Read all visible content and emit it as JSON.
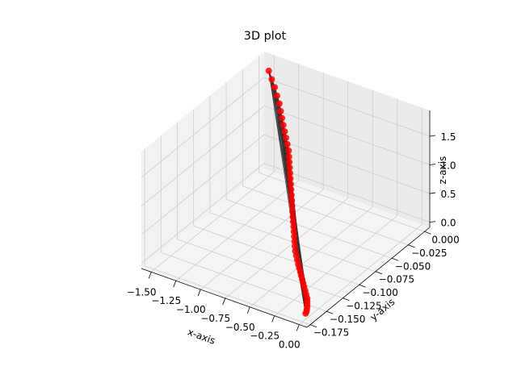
{
  "chart_data": {
    "type": "scatter",
    "title": "3D plot",
    "xlabel": "x-axis",
    "ylabel": "y-axis",
    "zlabel": "z-axis",
    "xlim": [
      -1.6,
      0.08
    ],
    "ylim": [
      -0.18,
      0.008
    ],
    "zlim": [
      -0.09,
      1.95
    ],
    "x_ticks": [
      "−1.50",
      "−1.25",
      "−1.00",
      "−0.75",
      "−0.50",
      "−0.25",
      "0.00"
    ],
    "x_tick_values": [
      -1.5,
      -1.25,
      -1.0,
      -0.75,
      -0.5,
      -0.25,
      0.0
    ],
    "y_ticks": [
      "−0.175",
      "−0.150",
      "−0.125",
      "−0.100",
      "−0.075",
      "−0.050",
      "−0.025",
      "0.000"
    ],
    "y_tick_values": [
      -0.175,
      -0.15,
      -0.125,
      -0.1,
      -0.075,
      -0.05,
      -0.025,
      0.0
    ],
    "z_ticks": [
      "0.0",
      "0.5",
      "1.0",
      "1.5"
    ],
    "z_tick_values": [
      0.0,
      0.5,
      1.0,
      1.5
    ],
    "grid": true,
    "colors": {
      "points": "#ff0000",
      "lines": "#333333",
      "pane_back": "#ebebeb",
      "pane_side": "#f2f2f2",
      "pane_floor": "#f5f5f5",
      "grid": "#cccccc"
    },
    "series": [
      {
        "x": [
          -1.5,
          -1.45,
          -1.4,
          -1.35,
          -1.3,
          -1.26,
          -1.22,
          -1.18,
          -1.14,
          -1.1,
          -1.06,
          -1.02,
          -0.99,
          -0.96,
          -0.93,
          -0.9,
          -0.87,
          -0.84,
          -0.81,
          -0.78,
          -0.75,
          -0.72,
          -0.69,
          -0.66,
          -0.63,
          -0.6,
          -0.57,
          -0.54,
          -0.51,
          -0.48,
          -0.45,
          -0.42,
          -0.39,
          -0.36,
          -0.33,
          -0.3,
          -0.27,
          -0.24,
          -0.21,
          -0.18,
          -0.15,
          -0.12,
          -0.09,
          -0.07,
          -0.05,
          -0.03,
          -0.015,
          -0.005,
          0.0
        ],
        "y": [
          0.0,
          -0.003,
          -0.006,
          -0.01,
          -0.014,
          -0.018,
          -0.022,
          -0.026,
          -0.03,
          -0.034,
          -0.038,
          -0.042,
          -0.046,
          -0.05,
          -0.054,
          -0.058,
          -0.062,
          -0.066,
          -0.07,
          -0.074,
          -0.078,
          -0.082,
          -0.086,
          -0.09,
          -0.094,
          -0.098,
          -0.102,
          -0.106,
          -0.11,
          -0.114,
          -0.118,
          -0.121,
          -0.124,
          -0.127,
          -0.13,
          -0.133,
          -0.136,
          -0.139,
          -0.142,
          -0.145,
          -0.148,
          -0.151,
          -0.154,
          -0.157,
          -0.16,
          -0.163,
          -0.166,
          -0.168,
          -0.17
        ],
        "z": [
          1.75,
          1.66,
          1.58,
          1.5,
          1.43,
          1.36,
          1.3,
          1.24,
          1.19,
          1.14,
          1.09,
          1.04,
          0.99,
          0.95,
          0.91,
          0.87,
          0.83,
          0.79,
          0.75,
          0.71,
          0.67,
          0.63,
          0.59,
          0.55,
          0.52,
          0.49,
          0.46,
          0.43,
          0.4,
          0.37,
          0.34,
          0.31,
          0.28,
          0.25,
          0.23,
          0.21,
          0.19,
          0.17,
          0.15,
          0.13,
          0.11,
          0.09,
          0.07,
          0.06,
          0.05,
          0.04,
          0.03,
          0.02,
          0.01
        ]
      }
    ]
  }
}
